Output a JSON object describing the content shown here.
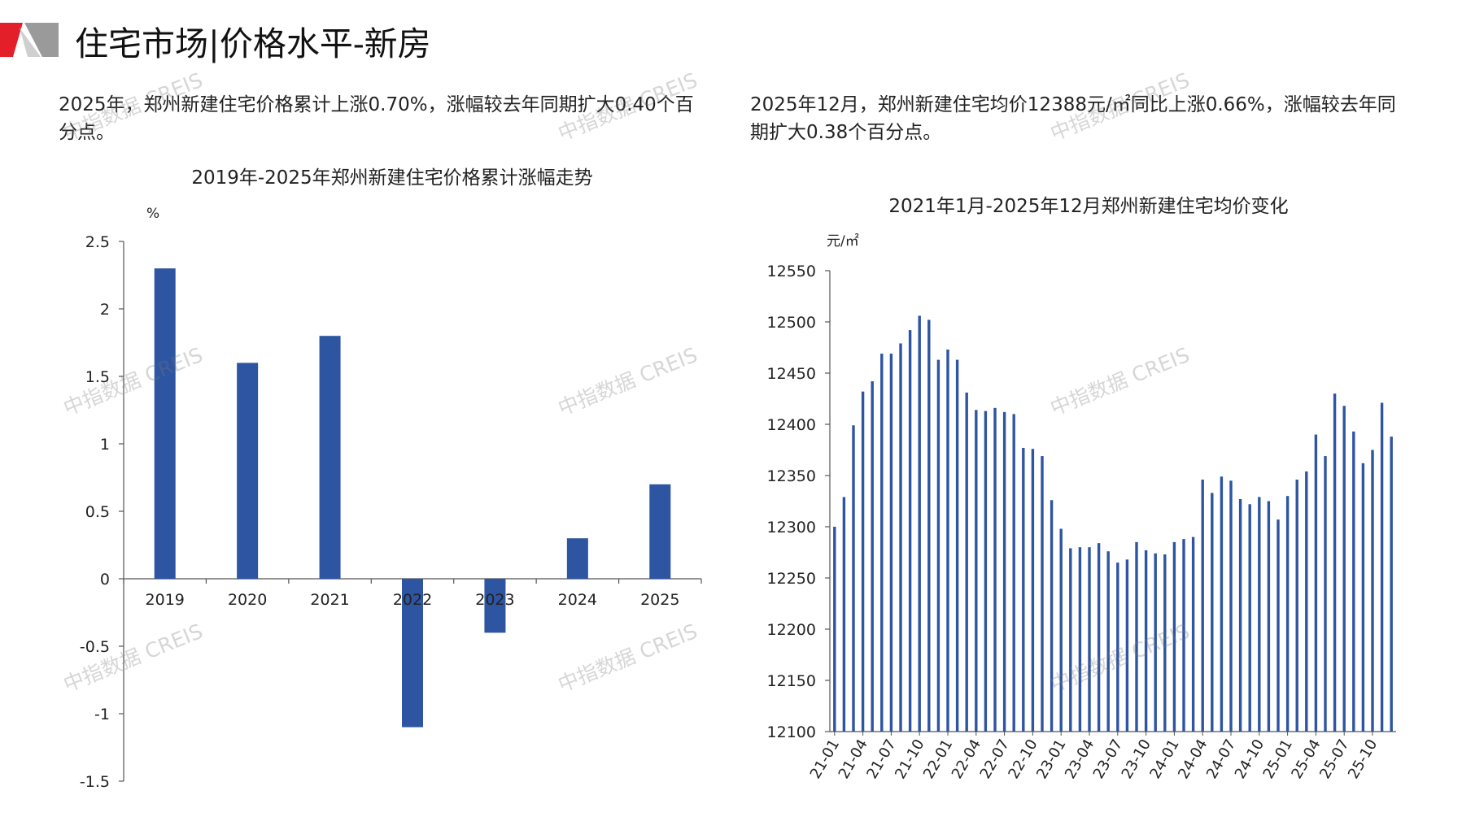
{
  "page": {
    "title": "住宅市场|价格水平-新房",
    "watermark": "中指数据 CREIS",
    "bar_color": "#2d55a2",
    "accent_red": "#e3202a",
    "accent_gray": "#8c8c8c"
  },
  "left_panel": {
    "description": "2025年，郑州新建住宅价格累计上涨0.70%，涨幅较去年同期扩大0.40个百分点。"
  },
  "right_panel": {
    "description": "2025年12月，郑州新建住宅均价12388元/㎡同比上涨0.66%，涨幅较去年同期扩大0.38个百分点。"
  },
  "chart_data": [
    {
      "type": "bar",
      "title": "2019年-2025年郑州新建住宅价格累计涨幅走势",
      "ylabel": "%",
      "categories": [
        "2019",
        "2020",
        "2021",
        "2022",
        "2023",
        "2024",
        "2025"
      ],
      "values": [
        2.3,
        1.6,
        1.8,
        -1.1,
        -0.4,
        0.3,
        0.7
      ],
      "ylim": [
        -1.5,
        2.5
      ],
      "yticks": [
        "2.5",
        "2",
        "1.5",
        "1",
        "0.5",
        "0",
        "-0.5",
        "-1",
        "-1.5"
      ],
      "grid": false
    },
    {
      "type": "bar",
      "title": "2021年1月-2025年12月郑州新建住宅均价变化",
      "ylabel": "元/㎡",
      "categories": [
        "21-01",
        "21-02",
        "21-03",
        "21-04",
        "21-05",
        "21-06",
        "21-07",
        "21-08",
        "21-09",
        "21-10",
        "21-11",
        "21-12",
        "22-01",
        "22-02",
        "22-03",
        "22-04",
        "22-05",
        "22-06",
        "22-07",
        "22-08",
        "22-09",
        "22-10",
        "22-11",
        "22-12",
        "23-01",
        "23-02",
        "23-03",
        "23-04",
        "23-05",
        "23-06",
        "23-07",
        "23-08",
        "23-09",
        "23-10",
        "23-11",
        "23-12",
        "24-01",
        "24-02",
        "24-03",
        "24-04",
        "24-05",
        "24-06",
        "24-07",
        "24-08",
        "24-09",
        "24-10",
        "24-11",
        "24-12",
        "25-01",
        "25-02",
        "25-03",
        "25-04",
        "25-05",
        "25-06",
        "25-07",
        "25-08",
        "25-09",
        "25-10",
        "25-11",
        "25-12"
      ],
      "tick_labels": [
        "21-01",
        "21-04",
        "21-07",
        "21-10",
        "22-01",
        "22-04",
        "22-07",
        "22-10",
        "23-01",
        "23-04",
        "23-07",
        "23-10",
        "24-01",
        "24-04",
        "24-07",
        "24-10",
        "25-01",
        "25-04",
        "25-07",
        "25-10"
      ],
      "values": [
        12300,
        12329,
        12399,
        12432,
        12442,
        12469,
        12469,
        12479,
        12492,
        12506,
        12502,
        12463,
        12473,
        12463,
        12431,
        12414,
        12413,
        12416,
        12412,
        12410,
        12377,
        12376,
        12369,
        12326,
        12298,
        12279,
        12280,
        12280,
        12284,
        12276,
        12265,
        12268,
        12285,
        12277,
        12274,
        12273,
        12285,
        12288,
        12290,
        12346,
        12333,
        12349,
        12345,
        12327,
        12322,
        12329,
        12325,
        12307,
        12330,
        12346,
        12354,
        12390,
        12369,
        12430,
        12418,
        12393,
        12362,
        12375,
        12421,
        12388
      ],
      "ylim": [
        12100,
        12550
      ],
      "yticks": [
        "12550",
        "12500",
        "12450",
        "12400",
        "12350",
        "12300",
        "12250",
        "12200",
        "12150",
        "12100"
      ],
      "grid": false
    }
  ]
}
